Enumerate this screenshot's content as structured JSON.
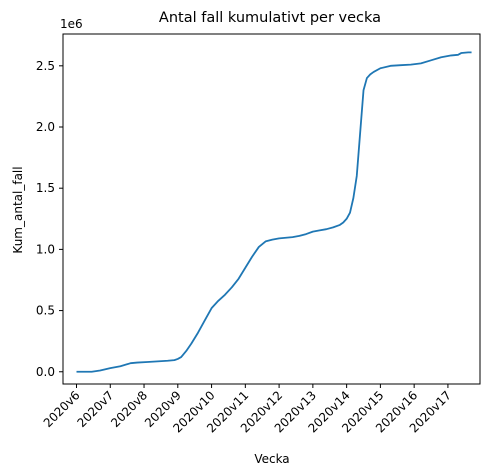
{
  "chart_data": {
    "type": "line",
    "title": "Antal fall kumulativt per vecka",
    "xlabel": "Vecka",
    "ylabel": "Kum_antal_fall",
    "y_offset_label": "1e6",
    "categories": [
      "2020v6",
      "2020v7",
      "2020v8",
      "2020v9",
      "2020v10",
      "2020v11",
      "2020v12",
      "2020v13",
      "2020v14",
      "2020v15",
      "2020v16",
      "2020v17"
    ],
    "xlim": [
      -0.4,
      11.95
    ],
    "ylim": [
      -0.1,
      2.76
    ],
    "yticks": [
      0.0,
      0.5,
      1.0,
      1.5,
      2.0,
      2.5
    ],
    "ytick_labels": [
      "0.0",
      "0.5",
      "1.0",
      "1.5",
      "2.0",
      "2.5"
    ],
    "grid": false,
    "line_color": "#1f77b4",
    "series": [
      {
        "x": [
          0,
          0.2,
          0.45,
          0.7,
          1.0,
          1.3,
          1.6,
          1.8,
          2.1,
          2.4,
          2.7,
          2.9,
          3.0,
          3.1,
          3.25,
          3.4,
          3.6,
          3.8,
          4.0,
          4.2,
          4.4,
          4.6,
          4.8,
          5.0,
          5.2,
          5.4,
          5.6,
          5.8,
          6.0,
          6.2,
          6.4,
          6.6,
          6.8,
          7.0,
          7.2,
          7.4,
          7.6,
          7.8,
          7.9,
          8.0,
          8.1,
          8.2,
          8.3,
          8.4,
          8.5,
          8.6,
          8.7,
          8.8,
          9.0,
          9.3,
          9.6,
          9.9,
          10.2,
          10.5,
          10.8,
          11.1,
          11.3,
          11.4,
          11.6,
          11.7
        ],
        "y": [
          0.0,
          0.0,
          0.0,
          0.01,
          0.03,
          0.045,
          0.07,
          0.075,
          0.08,
          0.085,
          0.09,
          0.095,
          0.105,
          0.12,
          0.17,
          0.23,
          0.32,
          0.42,
          0.52,
          0.58,
          0.63,
          0.69,
          0.76,
          0.85,
          0.94,
          1.02,
          1.065,
          1.08,
          1.09,
          1.095,
          1.1,
          1.11,
          1.125,
          1.145,
          1.155,
          1.165,
          1.18,
          1.2,
          1.22,
          1.25,
          1.3,
          1.42,
          1.6,
          1.95,
          2.3,
          2.4,
          2.43,
          2.45,
          2.48,
          2.5,
          2.505,
          2.51,
          2.52,
          2.545,
          2.57,
          2.585,
          2.59,
          2.605,
          2.61,
          2.61
        ]
      }
    ]
  }
}
